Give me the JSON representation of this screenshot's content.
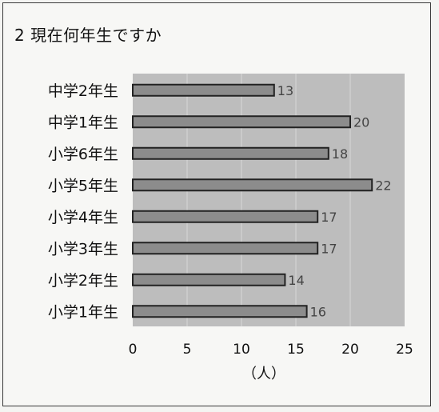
{
  "title": "2 現在何年生ですか",
  "chart_data": {
    "type": "bar",
    "orientation": "horizontal",
    "categories": [
      "中学2年生",
      "中学1年生",
      "小学6年生",
      "小学5年生",
      "小学4年生",
      "小学3年生",
      "小学2年生",
      "小学1年生"
    ],
    "values": [
      13,
      20,
      18,
      22,
      17,
      17,
      14,
      16
    ],
    "xlabel": "（人）",
    "xlim": [
      0,
      25
    ],
    "xticks": [
      0,
      5,
      10,
      15,
      20,
      25
    ],
    "grid": true,
    "colors": {
      "plot_bg": "#bdbdbd",
      "bar_fill": "#8c8c8c",
      "bar_stroke": "#222222",
      "gridline": "#d8d8d8"
    }
  }
}
